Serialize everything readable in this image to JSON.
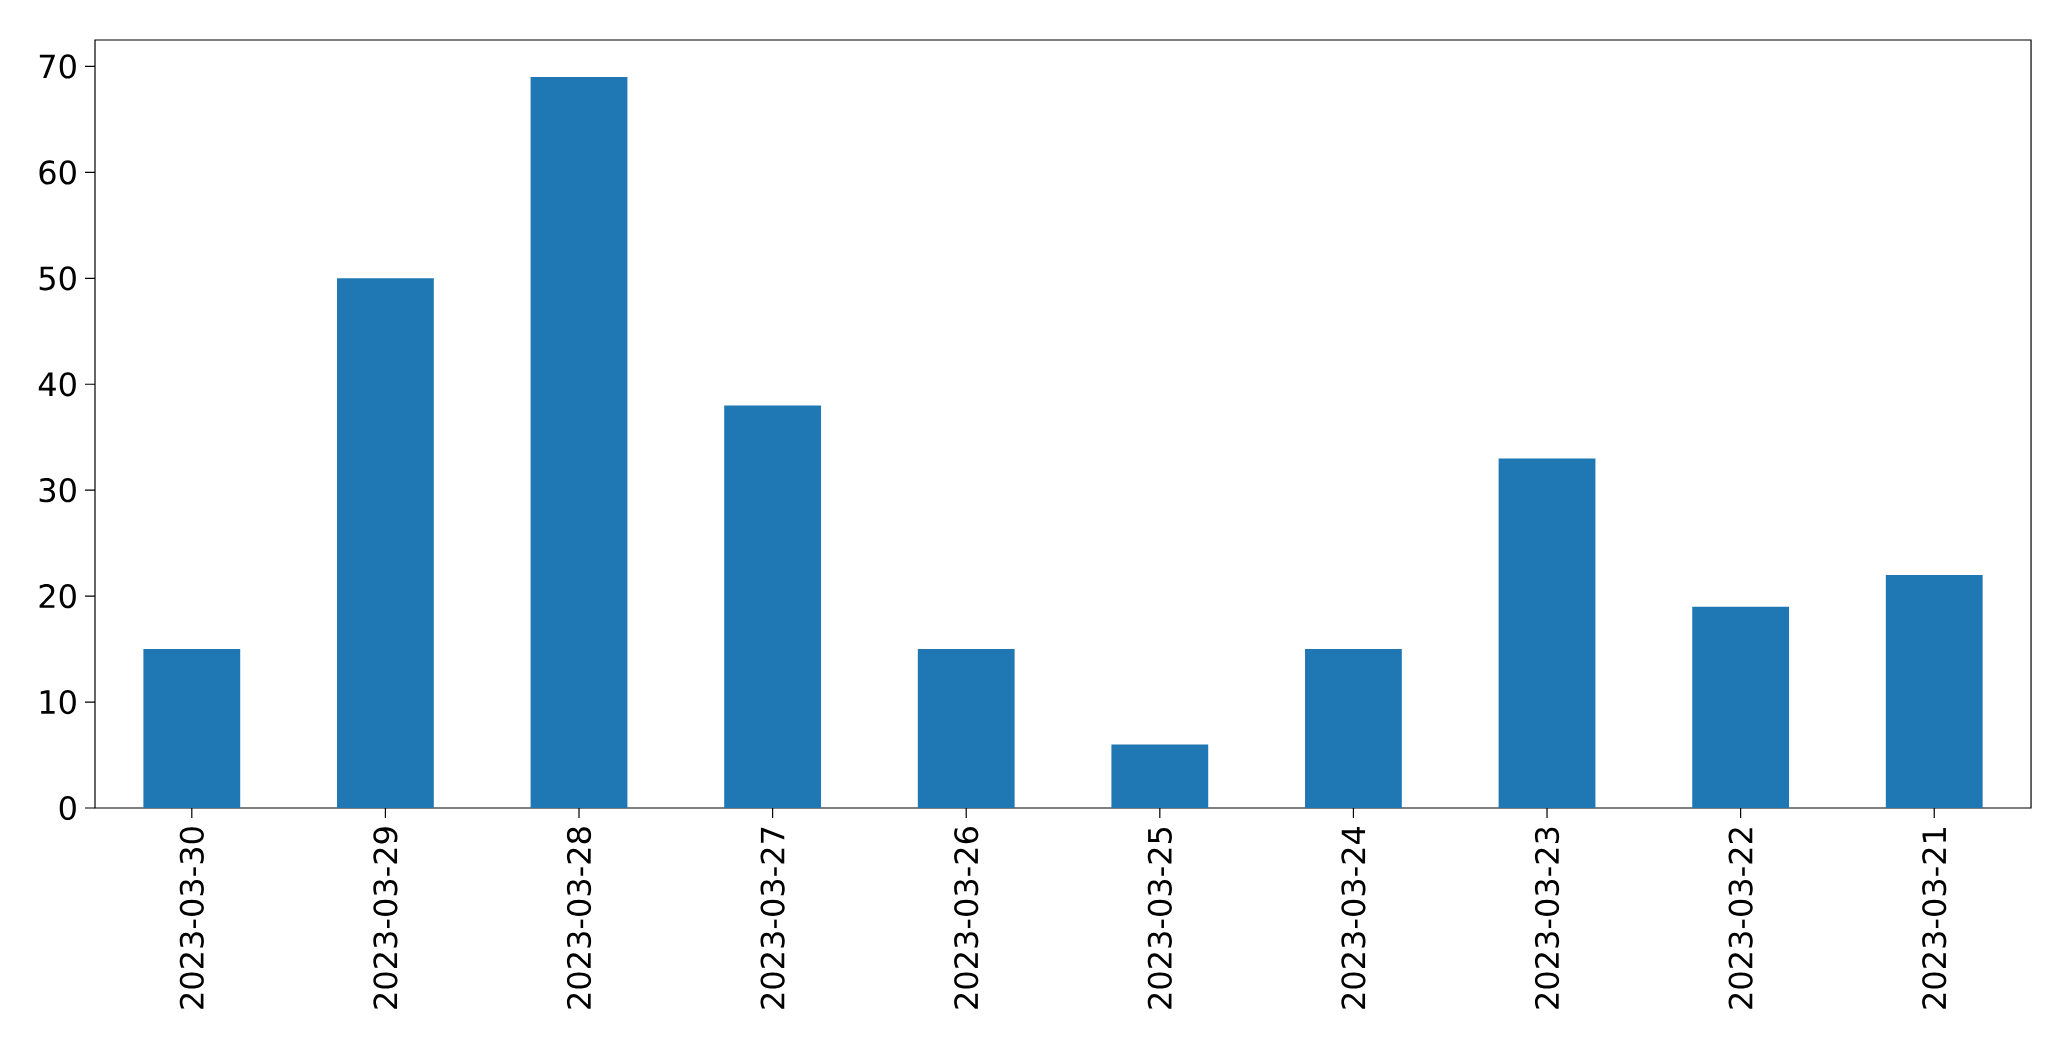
{
  "chart_data": {
    "type": "bar",
    "categories": [
      "2023-03-30",
      "2023-03-29",
      "2023-03-28",
      "2023-03-27",
      "2023-03-26",
      "2023-03-25",
      "2023-03-24",
      "2023-03-23",
      "2023-03-22",
      "2023-03-21"
    ],
    "values": [
      15,
      50,
      69,
      38,
      15,
      6,
      15,
      33,
      19,
      22
    ],
    "color": "#1f77b4",
    "ylim": [
      0,
      72.5
    ],
    "yticks": [
      0,
      10,
      20,
      30,
      40,
      50,
      60,
      70
    ]
  }
}
